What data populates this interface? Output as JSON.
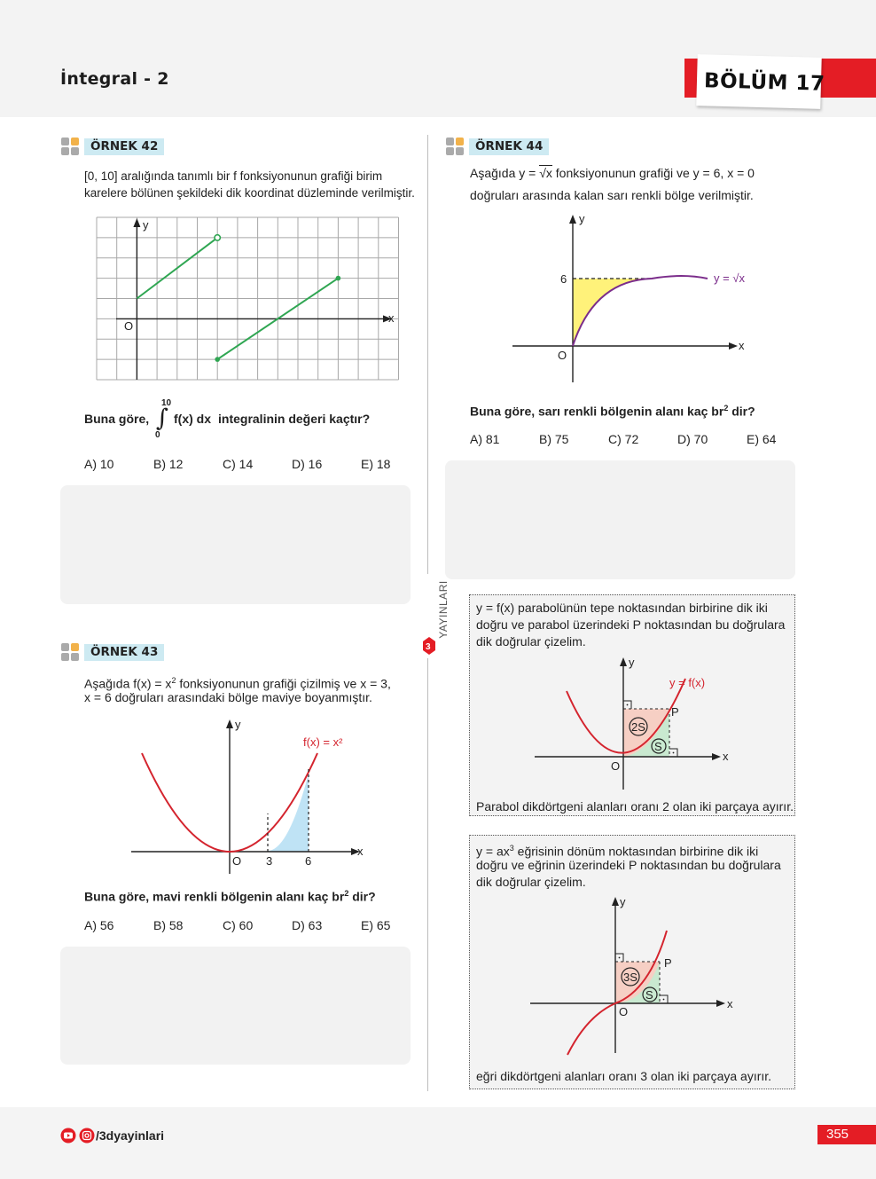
{
  "header": {
    "title": "İntegral - 2",
    "section": "BÖLÜM 17"
  },
  "colors": {
    "accent_red": "#e41d25",
    "label_bg": "#cdeaf2",
    "graph_green": "#2fa652",
    "parabola_red": "#d4242e",
    "sqrt_purple": "#7b2d8b",
    "yellow_fill": "#fff27a",
    "blue_fill": "#bfe3f5"
  },
  "publisher": "YAYINLARI",
  "ex42": {
    "label": "ÖRNEK 42",
    "text1": "[0, 10] aralığında tanımlı bir f fonksiyonunun grafiği birim",
    "text2": "karelere bölünen şekildeki dik koordinat düzleminde verilmiştir.",
    "axis_y": "y",
    "axis_x": "x",
    "origin": "O",
    "q_prefix": "Buna göre,",
    "int_upper": "10",
    "int_lower": "0",
    "integrand": "f(x) dx",
    "q_suffix": "integralinin değeri kaçtır?",
    "options": [
      "A) 10",
      "B) 12",
      "C) 14",
      "D) 16",
      "E) 18"
    ]
  },
  "ex43": {
    "label": "ÖRNEK 43",
    "text1_a": "Aşağıda f(x) = x",
    "text1_sup": "2",
    "text1_b": " fonksiyonunun grafiği çizilmiş ve x = 3,",
    "text2": "x = 6 doğruları arasındaki bölge maviye boyanmıştır.",
    "axis_y": "y",
    "axis_x": "x",
    "origin": "O",
    "tick3": "3",
    "tick6": "6",
    "curve_label": "f(x) = x²",
    "q_a": "Buna göre, mavi renkli bölgenin alanı kaç br",
    "q_sup": "2",
    "q_b": " dir?",
    "options": [
      "A) 56",
      "B) 58",
      "C) 60",
      "D) 63",
      "E) 65"
    ]
  },
  "ex44": {
    "label": "ÖRNEK 44",
    "text1_a": "Aşağıda  y = ",
    "text1_root": "√x",
    "text1_b": "  fonksiyonunun grafiği ve y = 6, x = 0",
    "text2": "doğruları arasında kalan sarı renkli bölge verilmiştir.",
    "axis_y": "y",
    "axis_x": "x",
    "origin": "O",
    "tick6": "6",
    "curve_label": "y = √x",
    "q_a": "Buna göre, sarı renkli bölgenin alanı kaç br",
    "q_sup": "2",
    "q_b": " dir?",
    "options": [
      "A) 81",
      "B) 75",
      "C) 72",
      "D) 70",
      "E) 64"
    ]
  },
  "info1": {
    "text1": "y = f(x) parabolünün tepe noktasından birbirine dik iki",
    "text2": "doğru ve parabol üzerindeki P noktasından bu doğrulara",
    "text3": "dik doğrular çizelim.",
    "axis_y": "y",
    "axis_x": "x",
    "origin": "O",
    "point": "P",
    "curve_label": "y = f(x)",
    "region_big": "2S",
    "region_small": "S",
    "footer": "Parabol dikdörtgeni alanları oranı 2 olan iki parçaya ayırır."
  },
  "info2": {
    "text1_a": "y = ax",
    "text1_sup": "3",
    "text1_b": " eğrisinin dönüm noktasından birbirine dik iki",
    "text2": "doğru ve eğrinin üzerindeki P noktasından bu doğrulara",
    "text3": "dik doğrular çizelim.",
    "axis_y": "y",
    "axis_x": "x",
    "origin": "O",
    "point": "P",
    "region_big": "3S",
    "region_small": "S",
    "footer": "eğri dikdörtgeni alanları oranı 3 olan iki parçaya ayırır."
  },
  "footer": {
    "handle": "/3dyayinlari",
    "page": "355"
  }
}
